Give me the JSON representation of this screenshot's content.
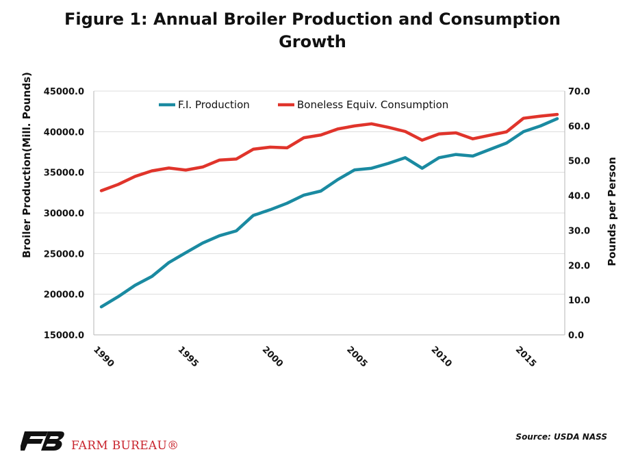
{
  "title_line1": "Figure 1: Annual Broiler Production and Consumption",
  "title_line2": "Growth",
  "source": "Source: USDA NASS",
  "brand_text": "FARM BUREAU®",
  "logo_icon": "farm-bureau-logo-icon",
  "colors": {
    "production": "#1a8aa1",
    "consumption": "#e0342b",
    "brand": "#c8232c"
  },
  "chart_data": {
    "type": "line",
    "x": [
      1990,
      1991,
      1992,
      1993,
      1994,
      1995,
      1996,
      1997,
      1998,
      1999,
      2000,
      2001,
      2002,
      2003,
      2004,
      2005,
      2006,
      2007,
      2008,
      2009,
      2010,
      2011,
      2012,
      2013,
      2014,
      2015,
      2016,
      2017
    ],
    "x_ticks": [
      "1990",
      "1995",
      "2000",
      "2005",
      "2010",
      "2015"
    ],
    "ylabel": "Broiler Production(Mill. Pounds)",
    "ylabel_right": "Pounds per Person",
    "ylim": [
      15000,
      45000
    ],
    "ylim_right": [
      0,
      70
    ],
    "y_ticks": [
      "15000.0",
      "20000.0",
      "25000.0",
      "30000.0",
      "35000.0",
      "40000.0",
      "45000.0"
    ],
    "y_ticks_right": [
      "0.0",
      "10.0",
      "20.0",
      "30.0",
      "40.0",
      "50.0",
      "60.0",
      "70.0"
    ],
    "legend_position": "top",
    "grid": "horizontal",
    "series": [
      {
        "name": "F.I. Production",
        "axis": "left",
        "values": [
          18450,
          19700,
          21100,
          22200,
          23900,
          25100,
          26300,
          27200,
          27800,
          29700,
          30400,
          31200,
          32200,
          32700,
          34100,
          35300,
          35500,
          36100,
          36800,
          35500,
          36800,
          37200,
          37000,
          37800,
          38600,
          40000,
          40700,
          41600
        ]
      },
      {
        "name": "Boneless Equiv. Consumption",
        "axis": "right",
        "values": [
          41.4,
          43.2,
          45.5,
          47.1,
          47.9,
          47.3,
          48.2,
          50.2,
          50.5,
          53.3,
          53.9,
          53.7,
          56.6,
          57.4,
          59.1,
          60.0,
          60.6,
          59.6,
          58.4,
          55.9,
          57.7,
          58.0,
          56.3,
          57.3,
          58.3,
          62.2,
          62.8,
          63.3
        ]
      }
    ]
  }
}
